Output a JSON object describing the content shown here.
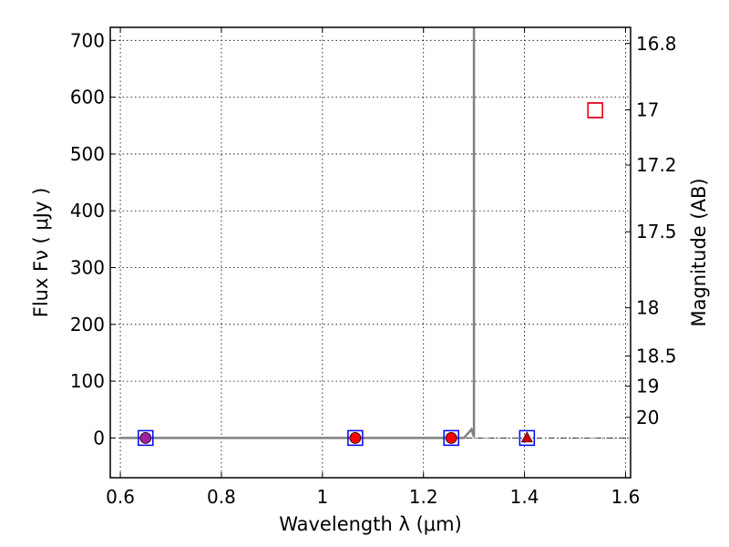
{
  "chart_data": {
    "type": "scatter",
    "xlabel": "Wavelength  λ (μm)",
    "ylabel": "Flux  Fν  ( μJy )",
    "ylabel_right": "Magnitude (AB)",
    "xlim": [
      0.58,
      1.61
    ],
    "ylim": [
      -70,
      723
    ],
    "grid": true,
    "x_ticks": [
      {
        "value": 0.6,
        "label": "0.6"
      },
      {
        "value": 0.8,
        "label": "0.8"
      },
      {
        "value": 1.0,
        "label": "1"
      },
      {
        "value": 1.2,
        "label": "1.2"
      },
      {
        "value": 1.4,
        "label": "1.4"
      },
      {
        "value": 1.6,
        "label": "1.6"
      }
    ],
    "y_ticks": [
      {
        "value": 0,
        "label": "0"
      },
      {
        "value": 100,
        "label": "100"
      },
      {
        "value": 200,
        "label": "200"
      },
      {
        "value": 300,
        "label": "300"
      },
      {
        "value": 400,
        "label": "400"
      },
      {
        "value": 500,
        "label": "500"
      },
      {
        "value": 600,
        "label": "600"
      },
      {
        "value": 700,
        "label": "700"
      }
    ],
    "right_ticks": [
      {
        "flux": 694.5,
        "label": "16.8"
      },
      {
        "flux": 577.7,
        "label": "17"
      },
      {
        "flux": 480.6,
        "label": "17.2"
      },
      {
        "flux": 363.1,
        "label": "17.5"
      },
      {
        "flux": 229.1,
        "label": "18"
      },
      {
        "flux": 144.5,
        "label": "18.5"
      },
      {
        "flux": 91.2,
        "label": "19"
      },
      {
        "flux": 36.3,
        "label": "20"
      }
    ],
    "reference_line_y": 0,
    "model_curve": {
      "color": "#808080",
      "x": [
        0.6,
        1.28,
        1.295,
        1.3,
        1.3
      ],
      "y": [
        0,
        0,
        15,
        2,
        723
      ]
    },
    "series": [
      {
        "marker": "square",
        "edge_color": "#0000ff",
        "fill": "none",
        "x": [
          0.65,
          1.065,
          1.255,
          1.405,
          1.54
        ],
        "y": [
          0,
          0,
          0,
          0,
          577
        ]
      },
      {
        "marker": "circle",
        "color": "#ff0000",
        "x": [
          1.065,
          1.255
        ],
        "y": [
          0,
          0
        ]
      },
      {
        "marker": "circle",
        "color": "#a020a0",
        "x": [
          0.65
        ],
        "y": [
          0
        ]
      },
      {
        "marker": "triangle",
        "color": "#cc0000",
        "x": [
          1.405
        ],
        "y": [
          0
        ]
      },
      {
        "marker": "square",
        "edge_color": "#ff0000",
        "fill": "none",
        "x": [
          1.54
        ],
        "y": [
          577
        ]
      }
    ]
  }
}
